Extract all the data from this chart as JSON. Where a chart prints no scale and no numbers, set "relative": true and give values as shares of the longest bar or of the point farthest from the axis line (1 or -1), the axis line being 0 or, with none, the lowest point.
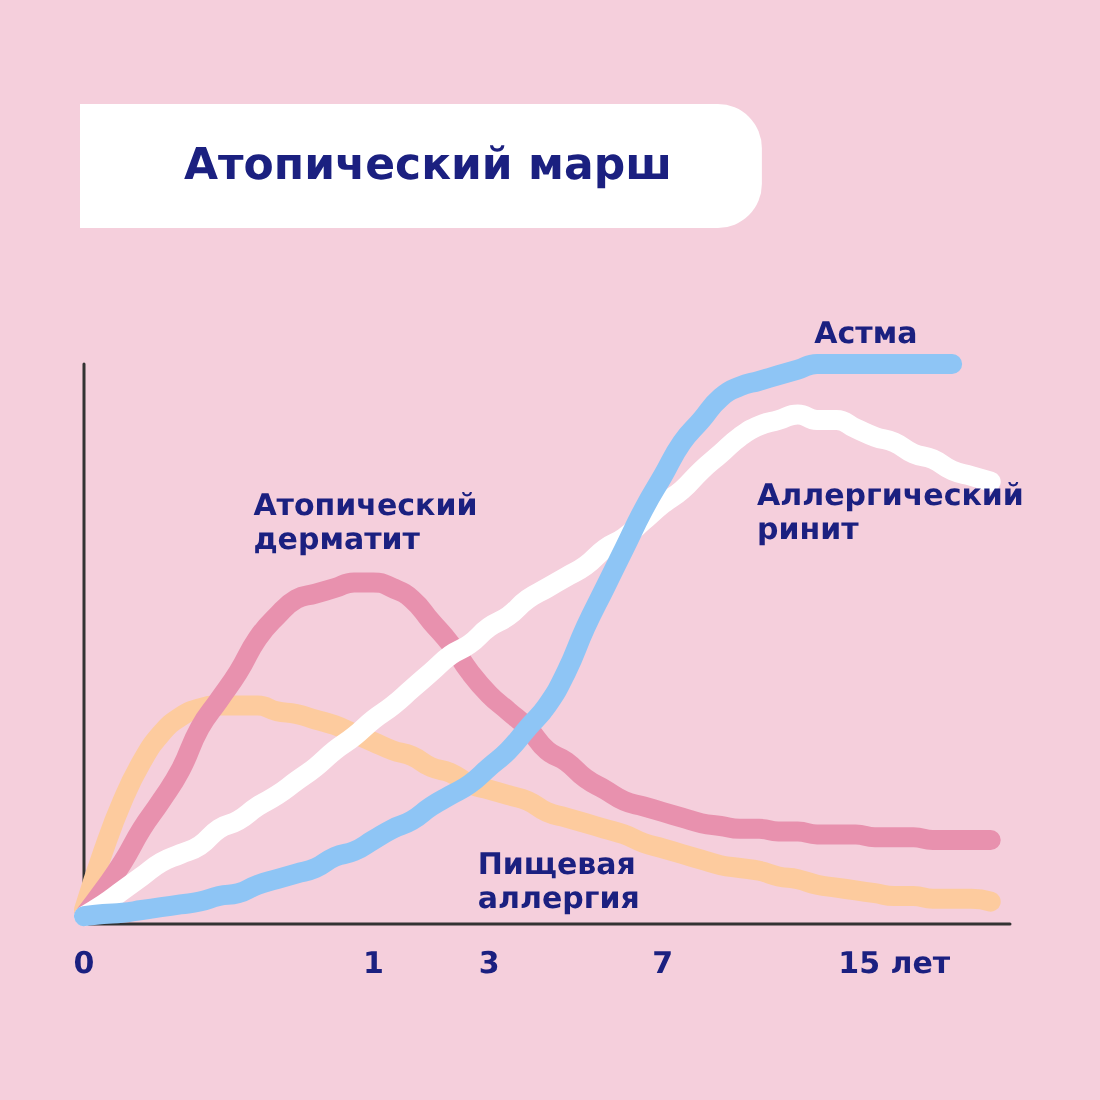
{
  "chart_data": {
    "type": "line",
    "title": "Атопический марш",
    "relative": true,
    "grid": false,
    "legend": false,
    "marker": "none",
    "line_style": "solid",
    "categories": [
      "0",
      null,
      null,
      null,
      null,
      null,
      null,
      null,
      null,
      null,
      null,
      null,
      null,
      null,
      null,
      "1",
      null,
      null,
      null,
      null,
      null,
      "3",
      null,
      null,
      null,
      null,
      null,
      null,
      null,
      null,
      "7",
      null,
      null,
      null,
      null,
      null,
      null,
      null,
      null,
      null,
      null,
      null,
      "15 лет",
      null,
      null,
      null,
      null,
      null,
      null
    ],
    "series": [
      {
        "name": "Пищевая аллергия",
        "color": "#fdcb9e",
        "values": [
          0.025,
          0.13,
          0.22,
          0.29,
          0.34,
          0.37,
          0.385,
          0.39,
          0.39,
          0.39,
          0.38,
          0.375,
          0.365,
          0.355,
          0.34,
          0.325,
          0.31,
          0.3,
          0.28,
          0.27,
          0.25,
          0.24,
          0.23,
          0.22,
          0.2,
          0.19,
          0.18,
          0.17,
          0.16,
          0.145,
          0.135,
          0.125,
          0.115,
          0.105,
          0.1,
          0.095,
          0.085,
          0.08,
          0.07,
          0.065,
          0.06,
          0.055,
          0.05,
          0.05,
          0.045,
          0.045,
          0.045,
          0.04,
          null
        ]
      },
      {
        "name": "Атопический дерматит",
        "color": "#e891ae",
        "values": [
          0.014,
          0.06,
          0.11,
          0.17,
          0.22,
          0.275,
          0.35,
          0.4,
          0.45,
          0.51,
          0.55,
          0.58,
          0.59,
          0.6,
          0.61,
          0.61,
          0.6,
          0.58,
          0.54,
          0.5,
          0.45,
          0.41,
          0.38,
          0.35,
          0.31,
          0.29,
          0.26,
          0.24,
          0.22,
          0.21,
          0.2,
          0.19,
          0.18,
          0.175,
          0.17,
          0.17,
          0.165,
          0.165,
          0.16,
          0.16,
          0.16,
          0.155,
          0.155,
          0.155,
          0.15,
          0.15,
          0.15,
          0.15,
          null
        ]
      },
      {
        "name": "Аллергический ринит",
        "color": "#ffffff",
        "values": [
          0.014,
          0.035,
          0.06,
          0.085,
          0.11,
          0.125,
          0.14,
          0.17,
          0.185,
          0.21,
          0.23,
          0.255,
          0.28,
          0.31,
          0.335,
          0.365,
          0.39,
          0.42,
          0.45,
          0.48,
          0.5,
          0.53,
          0.55,
          0.58,
          0.6,
          0.62,
          0.64,
          0.67,
          0.69,
          0.72,
          0.75,
          0.775,
          0.81,
          0.84,
          0.87,
          0.89,
          0.9,
          0.91,
          0.9,
          0.9,
          0.885,
          0.87,
          0.86,
          0.84,
          0.83,
          0.81,
          0.8,
          0.79,
          null
        ]
      },
      {
        "name": "Астма",
        "color": "#8ec5f5",
        "values": [
          0.014,
          0.018,
          0.02,
          0.025,
          0.03,
          0.035,
          0.04,
          0.05,
          0.055,
          0.07,
          0.08,
          0.09,
          0.1,
          0.12,
          0.13,
          0.15,
          0.17,
          0.185,
          0.21,
          0.23,
          0.25,
          0.28,
          0.31,
          0.35,
          0.39,
          0.45,
          0.53,
          0.6,
          0.67,
          0.74,
          0.8,
          0.86,
          0.9,
          0.94,
          0.96,
          0.97,
          0.98,
          0.99,
          1,
          1,
          1,
          1,
          1,
          1,
          1,
          1,
          null,
          null,
          null
        ]
      }
    ]
  }
}
